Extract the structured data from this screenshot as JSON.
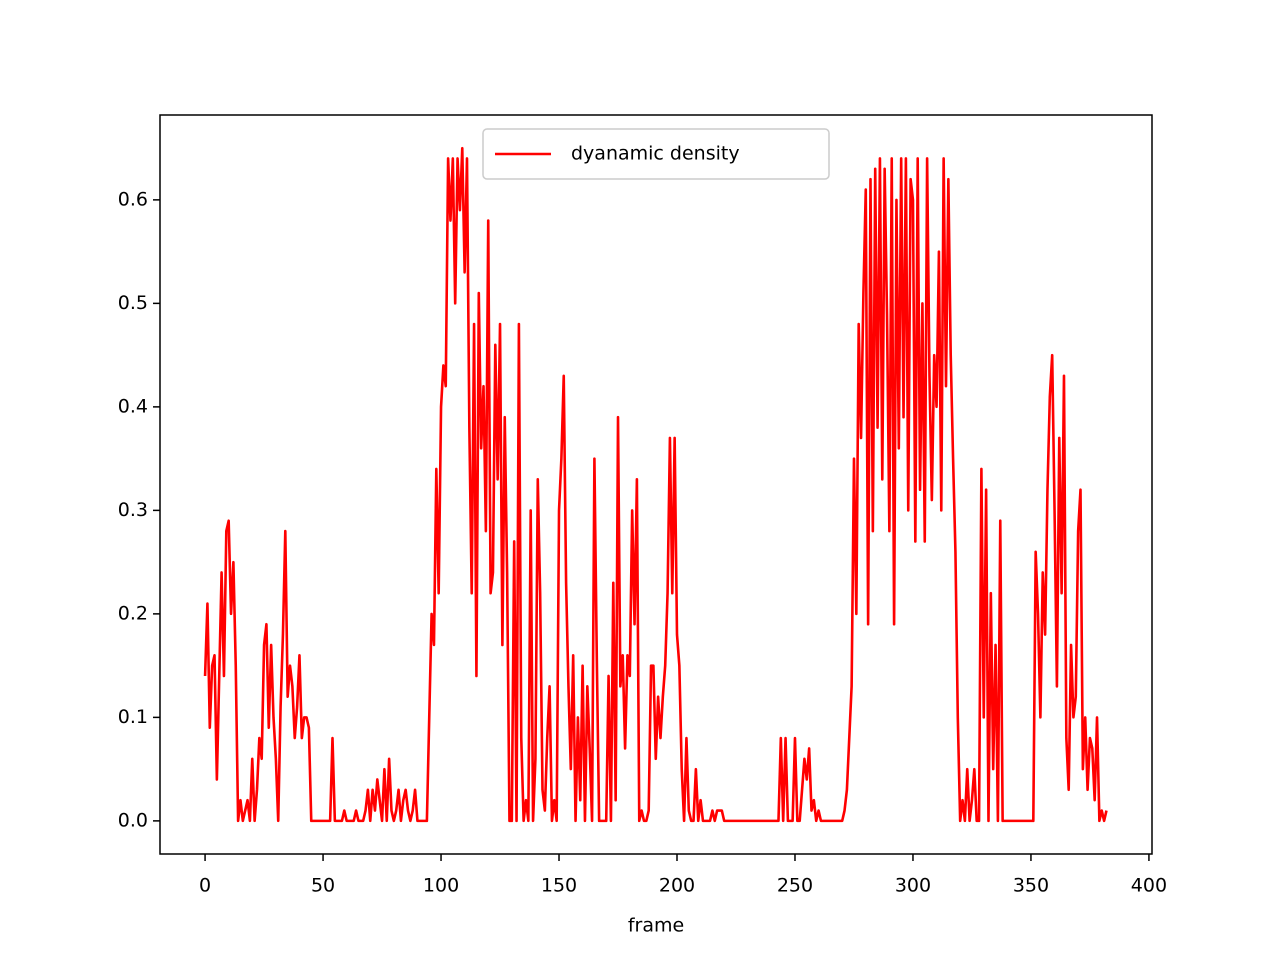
{
  "chart_data": {
    "type": "line",
    "xlabel": "frame",
    "xlim": [
      -19.1,
      401.3
    ],
    "ylim": [
      -0.032,
      0.682
    ],
    "xticks": [
      0,
      50,
      100,
      150,
      200,
      250,
      300,
      350,
      400
    ],
    "yticks": [
      {
        "value": 0,
        "label": "0.0"
      },
      0.1,
      0.2,
      0.3,
      0.4,
      0.5,
      0.6
    ],
    "legend": "upper center",
    "x": [
      0,
      1,
      2,
      3,
      4,
      5,
      6,
      7,
      8,
      9,
      10,
      11,
      12,
      13,
      14,
      15,
      16,
      17,
      18,
      19,
      20,
      21,
      22,
      23,
      24,
      25,
      26,
      27,
      28,
      29,
      30,
      31,
      32,
      33,
      34,
      35,
      36,
      37,
      38,
      39,
      40,
      41,
      42,
      43,
      44,
      45,
      46,
      47,
      48,
      49,
      50,
      51,
      52,
      53,
      54,
      55,
      56,
      57,
      58,
      59,
      60,
      61,
      62,
      63,
      64,
      65,
      66,
      67,
      68,
      69,
      70,
      71,
      72,
      73,
      74,
      75,
      76,
      77,
      78,
      79,
      80,
      81,
      82,
      83,
      84,
      85,
      86,
      87,
      88,
      89,
      90,
      91,
      92,
      93,
      94,
      95,
      96,
      97,
      98,
      99,
      100,
      101,
      102,
      103,
      104,
      105,
      106,
      107,
      108,
      109,
      110,
      111,
      112,
      113,
      114,
      115,
      116,
      117,
      118,
      119,
      120,
      121,
      122,
      123,
      124,
      125,
      126,
      127,
      128,
      129,
      130,
      131,
      132,
      133,
      134,
      135,
      136,
      137,
      138,
      139,
      140,
      141,
      142,
      143,
      144,
      145,
      146,
      147,
      148,
      149,
      150,
      151,
      152,
      153,
      154,
      155,
      156,
      157,
      158,
      159,
      160,
      161,
      162,
      163,
      164,
      165,
      166,
      167,
      168,
      169,
      170,
      171,
      172,
      173,
      174,
      175,
      176,
      177,
      178,
      179,
      180,
      181,
      182,
      183,
      184,
      185,
      186,
      187,
      188,
      189,
      190,
      191,
      192,
      193,
      194,
      195,
      196,
      197,
      198,
      199,
      200,
      201,
      202,
      203,
      204,
      205,
      206,
      207,
      208,
      209,
      210,
      211,
      212,
      213,
      214,
      215,
      216,
      217,
      218,
      219,
      220,
      221,
      222,
      223,
      224,
      225,
      226,
      227,
      228,
      229,
      230,
      231,
      232,
      233,
      234,
      235,
      236,
      237,
      238,
      239,
      240,
      241,
      242,
      243,
      244,
      245,
      246,
      247,
      248,
      249,
      250,
      251,
      252,
      253,
      254,
      255,
      256,
      257,
      258,
      259,
      260,
      261,
      262,
      263,
      264,
      265,
      266,
      267,
      268,
      269,
      270,
      271,
      272,
      273,
      274,
      275,
      276,
      277,
      278,
      279,
      280,
      281,
      282,
      283,
      284,
      285,
      286,
      287,
      288,
      289,
      290,
      291,
      292,
      293,
      294,
      295,
      296,
      297,
      298,
      299,
      300,
      301,
      302,
      303,
      304,
      305,
      306,
      307,
      308,
      309,
      310,
      311,
      312,
      313,
      314,
      315,
      316,
      317,
      318,
      319,
      320,
      321,
      322,
      323,
      324,
      325,
      326,
      327,
      328,
      329,
      330,
      331,
      332,
      333,
      334,
      335,
      336,
      337,
      338,
      339,
      340,
      341,
      342,
      343,
      344,
      345,
      346,
      347,
      348,
      349,
      350,
      351,
      352,
      353,
      354,
      355,
      356,
      357,
      358,
      359,
      360,
      361,
      362,
      363,
      364,
      365,
      366,
      367,
      368,
      369,
      370,
      371,
      372,
      373,
      374,
      375,
      376,
      377,
      378,
      379,
      380,
      381,
      382
    ],
    "series": [
      {
        "name": "dyanamic density",
        "color": "#ff0000",
        "values": [
          0.14,
          0.21,
          0.09,
          0.15,
          0.16,
          0.04,
          0.14,
          0.24,
          0.14,
          0.28,
          0.29,
          0.2,
          0.25,
          0.15,
          0.0,
          0.02,
          0.0,
          0.01,
          0.02,
          0.0,
          0.06,
          0.0,
          0.03,
          0.08,
          0.06,
          0.17,
          0.19,
          0.09,
          0.17,
          0.1,
          0.06,
          0.0,
          0.11,
          0.18,
          0.28,
          0.12,
          0.15,
          0.13,
          0.08,
          0.11,
          0.16,
          0.08,
          0.1,
          0.1,
          0.09,
          0.0,
          0.0,
          0.0,
          0.0,
          0.0,
          0.0,
          0.0,
          0.0,
          0.0,
          0.08,
          0.0,
          0.0,
          0.0,
          0.0,
          0.01,
          0.0,
          0.0,
          0.0,
          0.0,
          0.01,
          0.0,
          0.0,
          0.0,
          0.01,
          0.03,
          0.0,
          0.03,
          0.01,
          0.04,
          0.02,
          0.0,
          0.05,
          0.0,
          0.06,
          0.01,
          0.0,
          0.01,
          0.03,
          0.0,
          0.02,
          0.03,
          0.01,
          0.0,
          0.01,
          0.03,
          0.0,
          0.0,
          0.0,
          0.0,
          0.0,
          0.1,
          0.2,
          0.17,
          0.34,
          0.22,
          0.4,
          0.44,
          0.42,
          0.64,
          0.58,
          0.64,
          0.5,
          0.64,
          0.59,
          0.65,
          0.53,
          0.64,
          0.38,
          0.22,
          0.48,
          0.14,
          0.51,
          0.36,
          0.42,
          0.28,
          0.58,
          0.22,
          0.24,
          0.46,
          0.33,
          0.48,
          0.17,
          0.39,
          0.24,
          0.0,
          0.0,
          0.27,
          0.0,
          0.48,
          0.08,
          0.0,
          0.02,
          0.0,
          0.3,
          0.0,
          0.06,
          0.33,
          0.22,
          0.03,
          0.01,
          0.08,
          0.13,
          0.0,
          0.02,
          0.0,
          0.3,
          0.35,
          0.43,
          0.23,
          0.13,
          0.05,
          0.16,
          0.0,
          0.1,
          0.02,
          0.15,
          0.0,
          0.13,
          0.07,
          0.0,
          0.35,
          0.16,
          0.0,
          0.0,
          0.0,
          0.0,
          0.14,
          0.0,
          0.23,
          0.02,
          0.39,
          0.13,
          0.16,
          0.07,
          0.16,
          0.14,
          0.3,
          0.19,
          0.33,
          0.0,
          0.01,
          0.0,
          0.0,
          0.01,
          0.15,
          0.15,
          0.06,
          0.12,
          0.08,
          0.12,
          0.15,
          0.22,
          0.37,
          0.22,
          0.37,
          0.18,
          0.15,
          0.05,
          0.0,
          0.08,
          0.01,
          0.0,
          0.0,
          0.05,
          0.0,
          0.02,
          0.0,
          0.0,
          0.0,
          0.0,
          0.01,
          0.0,
          0.01,
          0.01,
          0.01,
          0.0,
          0.0,
          0.0,
          0.0,
          0.0,
          0.0,
          0.0,
          0.0,
          0.0,
          0.0,
          0.0,
          0.0,
          0.0,
          0.0,
          0.0,
          0.0,
          0.0,
          0.0,
          0.0,
          0.0,
          0.0,
          0.0,
          0.0,
          0.0,
          0.08,
          0.0,
          0.08,
          0.0,
          0.0,
          0.0,
          0.08,
          0.0,
          0.0,
          0.03,
          0.06,
          0.04,
          0.07,
          0.01,
          0.02,
          0.0,
          0.01,
          0.0,
          0.0,
          0.0,
          0.0,
          0.0,
          0.0,
          0.0,
          0.0,
          0.0,
          0.0,
          0.01,
          0.03,
          0.08,
          0.13,
          0.35,
          0.2,
          0.48,
          0.37,
          0.51,
          0.61,
          0.19,
          0.62,
          0.28,
          0.63,
          0.38,
          0.64,
          0.33,
          0.63,
          0.49,
          0.28,
          0.64,
          0.19,
          0.6,
          0.36,
          0.64,
          0.39,
          0.64,
          0.3,
          0.62,
          0.6,
          0.27,
          0.64,
          0.32,
          0.5,
          0.27,
          0.64,
          0.43,
          0.31,
          0.45,
          0.4,
          0.55,
          0.3,
          0.64,
          0.42,
          0.62,
          0.45,
          0.35,
          0.26,
          0.1,
          0.0,
          0.02,
          0.0,
          0.05,
          0.0,
          0.02,
          0.05,
          0.0,
          0.0,
          0.34,
          0.1,
          0.32,
          0.0,
          0.22,
          0.05,
          0.17,
          0.0,
          0.29,
          0.0,
          0.0,
          0.0,
          0.0,
          0.0,
          0.0,
          0.0,
          0.0,
          0.0,
          0.0,
          0.0,
          0.0,
          0.0,
          0.0,
          0.26,
          0.2,
          0.1,
          0.24,
          0.18,
          0.32,
          0.41,
          0.45,
          0.3,
          0.13,
          0.37,
          0.22,
          0.43,
          0.08,
          0.03,
          0.17,
          0.1,
          0.12,
          0.28,
          0.32,
          0.05,
          0.1,
          0.03,
          0.08,
          0.07,
          0.02,
          0.1,
          0.0,
          0.01,
          0.0,
          0.01
        ]
      }
    ]
  }
}
